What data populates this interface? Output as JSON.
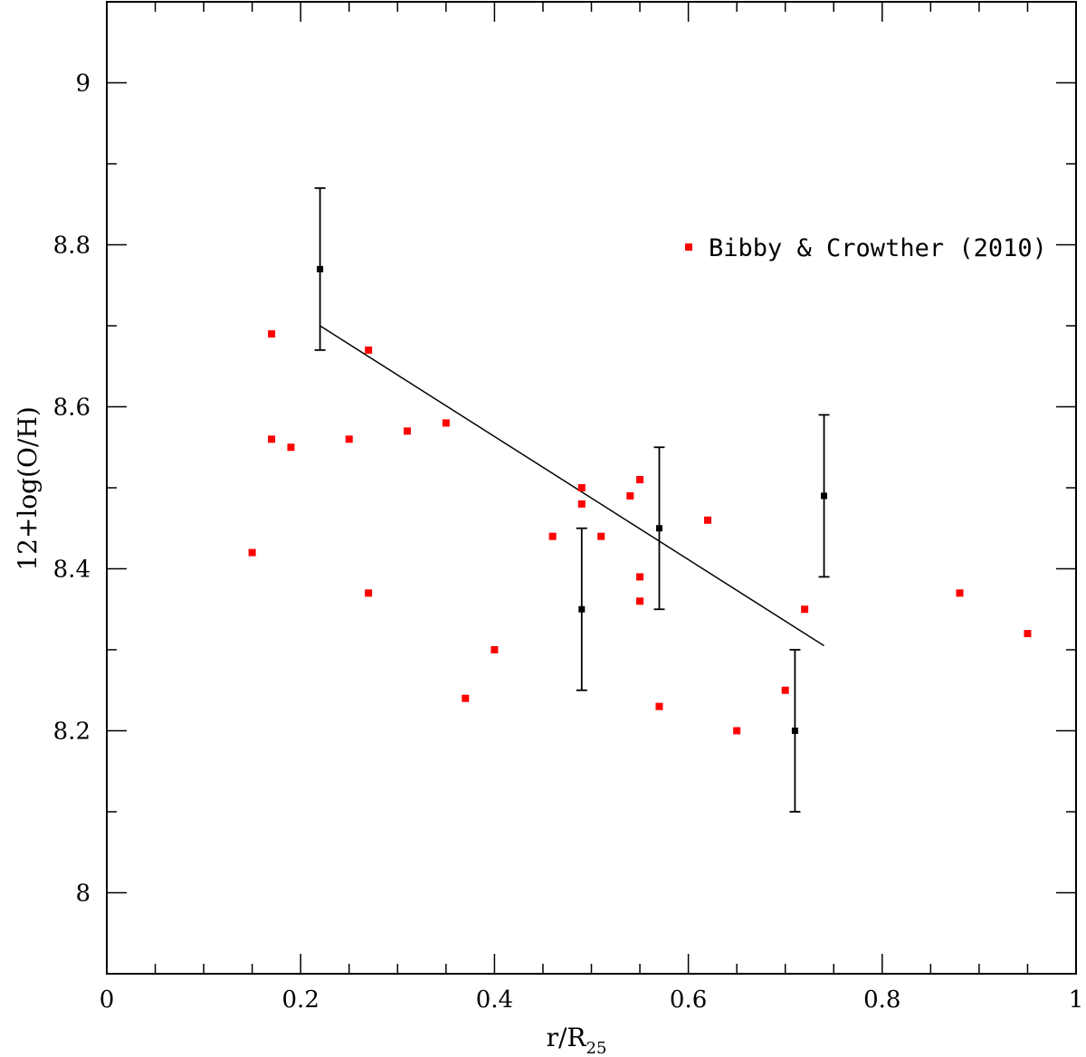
{
  "chart_data": {
    "type": "scatter",
    "xlabel": "r/R",
    "xlabel_sub": "25",
    "ylabel": "12+log(O/H)",
    "xlim": [
      0,
      1
    ],
    "ylim": [
      7.9,
      9.1
    ],
    "x_ticks": [
      0,
      0.2,
      0.4,
      0.6,
      0.8,
      1
    ],
    "x_tick_labels": [
      "0",
      "0.2",
      "0.4",
      "0.6",
      "0.8",
      "1"
    ],
    "y_ticks": [
      8,
      8.2,
      8.4,
      8.6,
      8.8,
      9
    ],
    "y_tick_labels": [
      "8",
      "8.2",
      "8.4",
      "8.6",
      "8.8",
      "9"
    ],
    "grid": false,
    "legend_position": "top-right",
    "series": [
      {
        "name": "Bibby & Crowther (2010)",
        "color": "#ff0000",
        "points": [
          [
            0.15,
            8.42
          ],
          [
            0.17,
            8.69
          ],
          [
            0.17,
            8.56
          ],
          [
            0.19,
            8.55
          ],
          [
            0.25,
            8.56
          ],
          [
            0.27,
            8.67
          ],
          [
            0.27,
            8.37
          ],
          [
            0.31,
            8.57
          ],
          [
            0.35,
            8.58
          ],
          [
            0.37,
            8.24
          ],
          [
            0.4,
            8.3
          ],
          [
            0.46,
            8.44
          ],
          [
            0.49,
            8.5
          ],
          [
            0.49,
            8.48
          ],
          [
            0.51,
            8.44
          ],
          [
            0.54,
            8.49
          ],
          [
            0.55,
            8.51
          ],
          [
            0.55,
            8.39
          ],
          [
            0.55,
            8.36
          ],
          [
            0.57,
            8.23
          ],
          [
            0.62,
            8.46
          ],
          [
            0.65,
            8.2
          ],
          [
            0.7,
            8.25
          ],
          [
            0.72,
            8.35
          ],
          [
            0.88,
            8.37
          ],
          [
            0.95,
            8.32
          ]
        ]
      },
      {
        "color": "#000000",
        "points": [
          {
            "x": 0.22,
            "y": 8.77,
            "err": 0.1
          },
          {
            "x": 0.49,
            "y": 8.35,
            "err": 0.1
          },
          {
            "x": 0.57,
            "y": 8.45,
            "err": 0.1
          },
          {
            "x": 0.71,
            "y": 8.2,
            "err": 0.1
          },
          {
            "x": 0.74,
            "y": 8.49,
            "err": 0.1
          }
        ]
      }
    ],
    "fit_line": {
      "color": "#000000",
      "points": [
        [
          0.22,
          8.7
        ],
        [
          0.74,
          8.305
        ]
      ]
    }
  }
}
